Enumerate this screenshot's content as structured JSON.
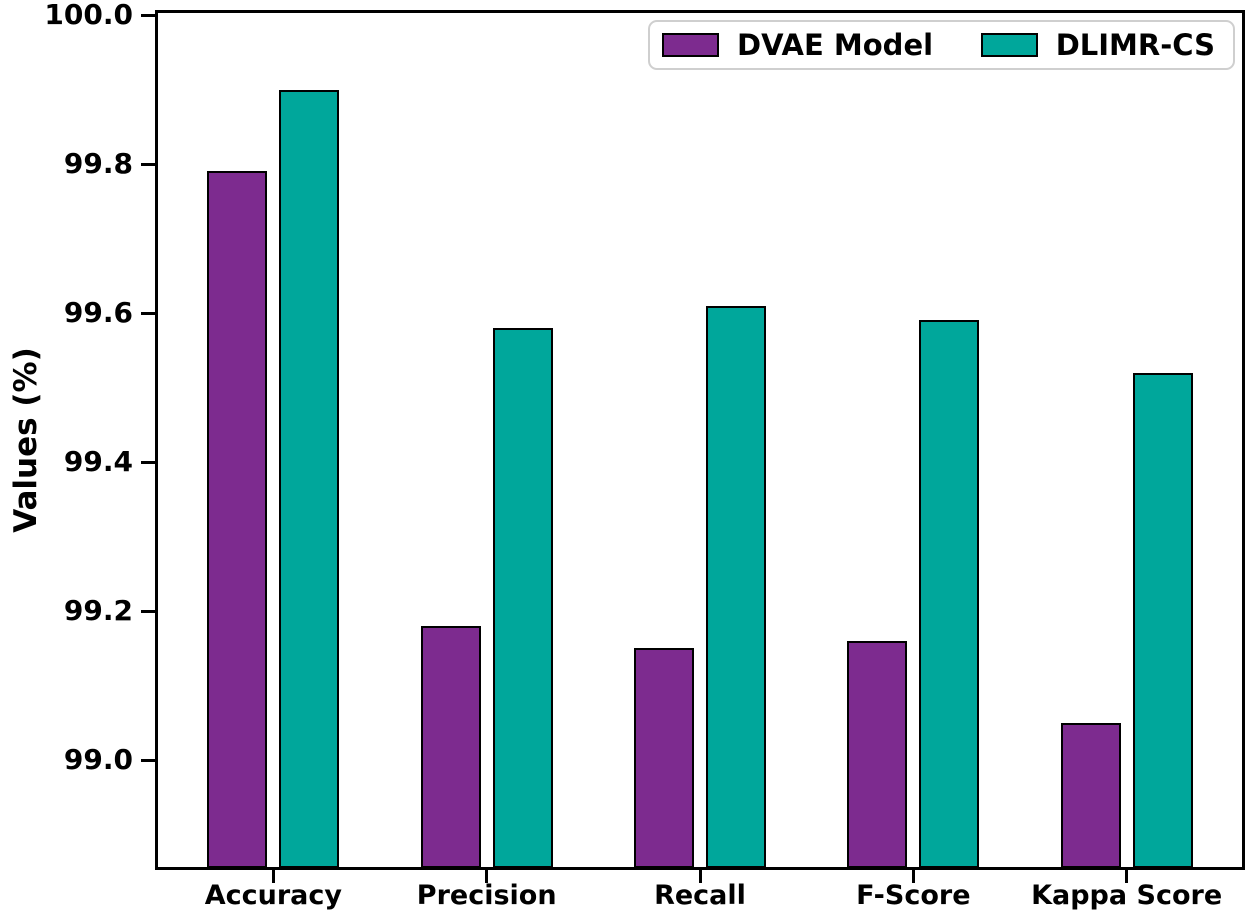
{
  "chart_data": {
    "type": "bar",
    "title": "",
    "categories": [
      "Accuracy",
      "Precision",
      "Recall",
      "F-Score",
      "Kappa Score"
    ],
    "series": [
      {
        "name": "DVAE Model",
        "color": "#7d2b8f",
        "values": [
          99.79,
          99.18,
          99.15,
          99.16,
          99.05
        ]
      },
      {
        "name": "DLIMR-CS",
        "color": "#00a79b",
        "values": [
          99.9,
          99.58,
          99.61,
          99.59,
          99.52
        ]
      }
    ],
    "xlabel": "",
    "ylabel": "Values (%)",
    "yticks": [
      100.0,
      99.8,
      99.6,
      99.4,
      99.2,
      99.0
    ],
    "ylim": [
      98.85,
      100.0
    ],
    "grid": false,
    "legend_position": "upper right",
    "bar_edge_color": "#000000",
    "background_color": "#ffffff"
  }
}
